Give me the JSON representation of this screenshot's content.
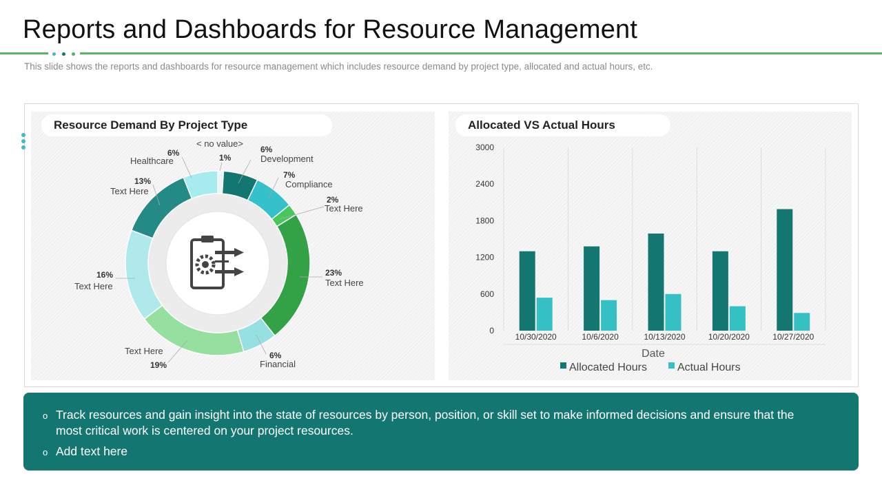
{
  "page": {
    "title": "Reports and Dashboards for Resource Management",
    "subtitle": "This slide shows the reports and dashboards for resource management which includes resource demand by project type, allocated and actual hours, etc.",
    "colors": {
      "accent": "#56b464",
      "teal_dark": "#147670",
      "teal_light": "#35c1c3"
    }
  },
  "donut_panel": {
    "title": "Resource Demand By Project Type",
    "center_icon": "clipboard-gear-arrows-icon",
    "no_value_label": "< no value>",
    "slices": [
      {
        "name": "",
        "pct_label": "1%",
        "value": 1,
        "color": "#e8f6f6"
      },
      {
        "name": "Development",
        "pct_label": "6%",
        "value": 6,
        "color": "#147670"
      },
      {
        "name": "Compliance",
        "pct_label": "7%",
        "value": 7,
        "color": "#35c1c9"
      },
      {
        "name": "Text Here",
        "pct_label": "2%",
        "value": 2,
        "color": "#48c75a"
      },
      {
        "name": "Text Here",
        "pct_label": "23%",
        "value": 23,
        "color": "#33a246"
      },
      {
        "name": "Financial",
        "pct_label": "6%",
        "value": 6,
        "color": "#96e0e2"
      },
      {
        "name": "Text Here",
        "pct_label": "19%",
        "value": 19,
        "color": "#95e09f"
      },
      {
        "name": "Text Here",
        "pct_label": "16%",
        "value": 16,
        "color": "#b0e9ec"
      },
      {
        "name": "Text Here",
        "pct_label": "13%",
        "value": 13,
        "color": "#238a85"
      },
      {
        "name": "Healthcare",
        "pct_label": "6%",
        "value": 6,
        "color": "#a6ecef"
      }
    ]
  },
  "bar_panel": {
    "title": "Allocated  VS Actual  Hours"
  },
  "chart_data": {
    "type": "bar",
    "title": "Allocated  VS Actual  Hours",
    "xlabel": "Date",
    "ylabel": "",
    "categories": [
      "10/30/2020",
      "10/6/2020",
      "10/13/2020",
      "10/20/2020",
      "10/27/2020"
    ],
    "series": [
      {
        "name": "Allocated Hours",
        "color": "#147670",
        "values": [
          1300,
          1380,
          1590,
          1300,
          1990
        ]
      },
      {
        "name": "Actual Hours",
        "color": "#35c1c3",
        "values": [
          540,
          500,
          600,
          400,
          290
        ]
      }
    ],
    "ylim": [
      0,
      3000
    ],
    "yticks": [
      "0",
      "600",
      "1200",
      "1800",
      "2400",
      "3000"
    ],
    "grid": "vertical",
    "legend": "bottom"
  },
  "bullets": [
    "Track resources and gain insight into the state of resources by person, position, or skill set to make informed decisions and ensure that the most critical work is centered on your project resources.",
    "Add text here"
  ]
}
